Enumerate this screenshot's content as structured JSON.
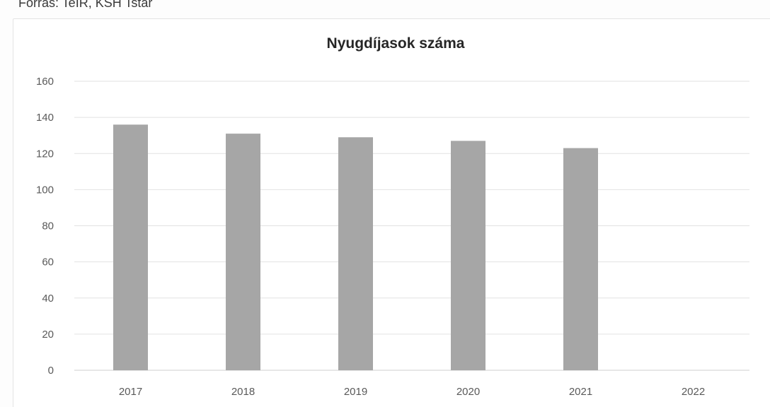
{
  "source": {
    "text": "Forrás: TeIR, KSH Tstar"
  },
  "chart_data": {
    "type": "bar",
    "title": "Nyugdíjasok száma",
    "categories": [
      "2017",
      "2018",
      "2019",
      "2020",
      "2021",
      "2022"
    ],
    "values": [
      136,
      131,
      129,
      127,
      123,
      null
    ],
    "xlabel": "",
    "ylabel": "",
    "ylim": [
      0,
      160
    ],
    "yticks": [
      "0",
      "20",
      "40",
      "60",
      "80",
      "100",
      "120",
      "140",
      "160"
    ],
    "grid": true,
    "legend": "none",
    "bar_color": "#a6a6a6"
  }
}
